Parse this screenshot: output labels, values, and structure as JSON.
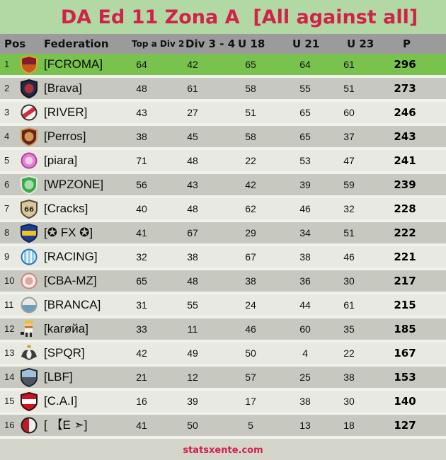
{
  "title": "DA Ed 11 Zona A  [All against all]",
  "footer": {
    "site": "statsxente.com"
  },
  "colors": {
    "accent_title": "#d0224a",
    "page_top": "#b2d9a4",
    "page_bottom": "#d4d6cb",
    "header_bar": "#9b9b9b",
    "row_green": "#79c24e",
    "row_dark": "#c7c9c0",
    "row_light": "#e8eae2",
    "gap": "#f1f2ec"
  },
  "table": {
    "columns": [
      "Pos",
      "Federation",
      "Top a Div 2",
      "Div 3 - 4",
      "U 18",
      "U 21",
      "U 23",
      "P"
    ],
    "rows": [
      {
        "pos": 1,
        "federation": "[FCROMA]",
        "values": [
          64,
          42,
          65,
          64,
          61
        ],
        "points": 296,
        "highlight": true,
        "badge": {
          "name": "fcroma-badge",
          "shape": "shield",
          "pattern": "halves",
          "colors": [
            "#e2a52f",
            "#801f2b",
            "#c25a1e"
          ]
        }
      },
      {
        "pos": 2,
        "federation": "[Brava]",
        "values": [
          48,
          61,
          58,
          55,
          51
        ],
        "points": 273,
        "highlight": false,
        "badge": {
          "name": "brava-badge",
          "shape": "shield",
          "pattern": "dot",
          "colors": [
            "#10141f",
            "#222a47",
            "#b03038"
          ]
        }
      },
      {
        "pos": 3,
        "federation": "[RIVER]",
        "values": [
          43,
          27,
          51,
          65,
          60
        ],
        "points": 246,
        "highlight": false,
        "badge": {
          "name": "river-badge",
          "shape": "circle",
          "pattern": "sash",
          "colors": [
            "#333333",
            "#f4f4f0",
            "#d62a3e"
          ]
        }
      },
      {
        "pos": 4,
        "federation": "[Perros]",
        "values": [
          38,
          45,
          58,
          65,
          37
        ],
        "points": 243,
        "highlight": false,
        "badge": {
          "name": "perros-badge",
          "shape": "shield",
          "pattern": "dot",
          "colors": [
            "#caa04e",
            "#6e1e20",
            "#c99a52"
          ]
        }
      },
      {
        "pos": 5,
        "federation": "[piara]",
        "values": [
          71,
          48,
          22,
          53,
          47
        ],
        "points": 241,
        "highlight": false,
        "badge": {
          "name": "piara-badge",
          "shape": "circle",
          "pattern": "dot",
          "colors": [
            "#b03fa0",
            "#de83d0",
            "#f2cbe8"
          ]
        }
      },
      {
        "pos": 6,
        "federation": "[WPZONE]",
        "values": [
          56,
          43,
          42,
          39,
          59
        ],
        "points": 239,
        "highlight": false,
        "badge": {
          "name": "wpzone-badge",
          "shape": "shield",
          "pattern": "dot",
          "colors": [
            "#e6e9e2",
            "#3da84a",
            "#a8dcae"
          ]
        }
      },
      {
        "pos": 7,
        "federation": "[Cracks]",
        "values": [
          40,
          48,
          62,
          46,
          32
        ],
        "points": 228,
        "highlight": false,
        "badge": {
          "name": "cracks-badge",
          "shape": "shield",
          "pattern": "plain",
          "colors": [
            "#54482e",
            "#d9c89e",
            "#2a2418"
          ],
          "text": "66"
        }
      },
      {
        "pos": 8,
        "federation": "[✪ FX ✪]",
        "values": [
          41,
          67,
          29,
          34,
          51
        ],
        "points": 222,
        "highlight": false,
        "badge": {
          "name": "fx-badge",
          "shape": "shield",
          "pattern": "band",
          "colors": [
            "#122257",
            "#1b3d94",
            "#f2c31f"
          ]
        }
      },
      {
        "pos": 9,
        "federation": "[RACING]",
        "values": [
          32,
          38,
          67,
          38,
          46
        ],
        "points": 221,
        "highlight": false,
        "badge": {
          "name": "racing-badge",
          "shape": "circle",
          "pattern": "stripes",
          "colors": [
            "#2a6fb0",
            "#ffffff",
            "#8fcdef"
          ]
        }
      },
      {
        "pos": 10,
        "federation": "[CBA-MZ]",
        "values": [
          65,
          48,
          38,
          36,
          30
        ],
        "points": 217,
        "highlight": false,
        "badge": {
          "name": "cba-mz-badge",
          "shape": "circle",
          "pattern": "dot",
          "colors": [
            "#c8867e",
            "#f2e9e4",
            "#dca8a0"
          ]
        }
      },
      {
        "pos": 11,
        "federation": "[BRANCA]",
        "values": [
          31,
          55,
          24,
          44,
          61
        ],
        "points": 215,
        "highlight": false,
        "badge": {
          "name": "branca-badge",
          "shape": "circle",
          "pattern": "half-bottom",
          "colors": [
            "#9aa0a6",
            "#e9e9e6",
            "#6f9fb8"
          ]
        }
      },
      {
        "pos": 12,
        "federation": "[kaгøйa]",
        "values": [
          33,
          11,
          46,
          60,
          35
        ],
        "points": 185,
        "highlight": false,
        "badge": {
          "name": "karoya-badge",
          "shape": "pixel",
          "pattern": "plain",
          "colors": [
            "#e8c02a",
            "#f2f2ee",
            "#d06616"
          ]
        }
      },
      {
        "pos": 13,
        "federation": "[SPQR]",
        "values": [
          42,
          49,
          50,
          4,
          22
        ],
        "points": 167,
        "highlight": false,
        "badge": {
          "name": "spqr-badge",
          "shape": "eagle",
          "pattern": "plain",
          "colors": [
            "#3c3c3c",
            "#efefec",
            "#c8a428"
          ]
        }
      },
      {
        "pos": 14,
        "federation": "[LBF]",
        "values": [
          21,
          12,
          57,
          25,
          38
        ],
        "points": 153,
        "highlight": false,
        "badge": {
          "name": "lbf-badge",
          "shape": "shield",
          "pattern": "halves",
          "colors": [
            "#23272e",
            "#9fc2dc",
            "#4d5560"
          ]
        }
      },
      {
        "pos": 15,
        "federation": "[C.A.I]",
        "values": [
          16,
          39,
          17,
          38,
          30
        ],
        "points": 140,
        "highlight": false,
        "badge": {
          "name": "cai-badge",
          "shape": "shield",
          "pattern": "band",
          "colors": [
            "#2a1518",
            "#cf1420",
            "#ffffff"
          ]
        }
      },
      {
        "pos": 16,
        "federation": "[ 【E ➣]",
        "values": [
          41,
          50,
          5,
          13,
          18
        ],
        "points": 127,
        "highlight": false,
        "badge": {
          "name": "e-badge",
          "shape": "circle",
          "pattern": "half-left",
          "colors": [
            "#1c1c1c",
            "#f0efeb",
            "#c01a28"
          ]
        }
      }
    ]
  }
}
